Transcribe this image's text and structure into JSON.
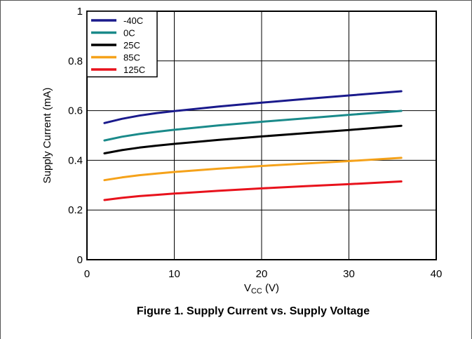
{
  "chart_data": {
    "type": "line",
    "title": "",
    "caption": "Figure 1. Supply Current vs. Supply Voltage",
    "xlabel": {
      "main": "V",
      "sub": "CC",
      "unit": " (V)"
    },
    "ylabel": "Supply Current (mA)",
    "xlim": [
      0,
      40
    ],
    "ylim": [
      0,
      1
    ],
    "xticks": [
      0,
      10,
      20,
      30,
      40
    ],
    "yticks": [
      0,
      0.2,
      0.4,
      0.6,
      0.8,
      1
    ],
    "xtick_labels": [
      "0",
      "10",
      "20",
      "30",
      "40"
    ],
    "ytick_labels": [
      "0",
      "0.2",
      "0.4",
      "0.6",
      "0.8",
      "1"
    ],
    "grid": true,
    "legend_position": "top-left",
    "x": [
      2,
      4,
      6,
      8,
      10,
      15,
      20,
      25,
      30,
      36
    ],
    "series": [
      {
        "name": "-40C",
        "color": "#1a1a8c",
        "values": [
          0.55,
          0.567,
          0.58,
          0.59,
          0.598,
          0.616,
          0.632,
          0.647,
          0.661,
          0.678
        ]
      },
      {
        "name": "0C",
        "color": "#1a8a8a",
        "values": [
          0.48,
          0.495,
          0.506,
          0.515,
          0.523,
          0.54,
          0.555,
          0.569,
          0.583,
          0.599
        ]
      },
      {
        "name": "25C",
        "color": "#000000",
        "values": [
          0.428,
          0.441,
          0.451,
          0.459,
          0.466,
          0.482,
          0.496,
          0.509,
          0.522,
          0.539
        ]
      },
      {
        "name": "85C",
        "color": "#f5a21a",
        "values": [
          0.32,
          0.331,
          0.34,
          0.347,
          0.353,
          0.366,
          0.377,
          0.387,
          0.397,
          0.41
        ]
      },
      {
        "name": "125C",
        "color": "#e8121c",
        "values": [
          0.24,
          0.249,
          0.256,
          0.261,
          0.266,
          0.277,
          0.287,
          0.296,
          0.304,
          0.315
        ]
      }
    ]
  }
}
